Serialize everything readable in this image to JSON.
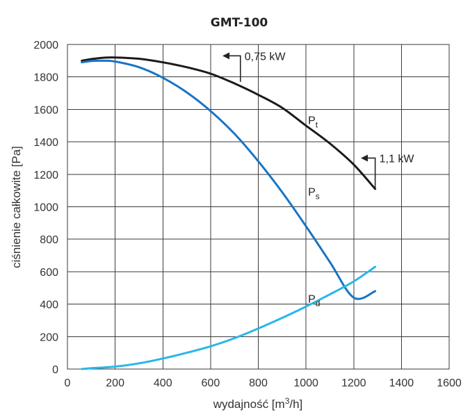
{
  "chart_data": {
    "type": "line",
    "title": "GMT-100",
    "xlabel_base": "wydajność [m",
    "xlabel_sup": "3",
    "xlabel_end": "/h]",
    "ylabel": "ciśnienie całkowite [Pa]",
    "xlim": [
      0,
      1600
    ],
    "ylim": [
      0,
      2000
    ],
    "xticks": [
      0,
      200,
      400,
      600,
      800,
      1000,
      1200,
      1400,
      1600
    ],
    "yticks": [
      0,
      200,
      400,
      600,
      800,
      1000,
      1200,
      1400,
      1600,
      1800,
      2000
    ],
    "grid": true,
    "series": [
      {
        "name": "Pt",
        "label_main": "P",
        "label_sub": "t",
        "color": "#1a1a1a",
        "x": [
          60,
          100,
          150,
          200,
          300,
          400,
          500,
          600,
          700,
          800,
          900,
          1000,
          1100,
          1200,
          1290
        ],
        "y": [
          1900,
          1910,
          1918,
          1920,
          1912,
          1890,
          1860,
          1820,
          1760,
          1690,
          1610,
          1500,
          1390,
          1260,
          1110
        ]
      },
      {
        "name": "Ps",
        "label_main": "P",
        "label_sub": "s",
        "color": "#1874c4",
        "x": [
          60,
          100,
          150,
          200,
          300,
          400,
          500,
          600,
          700,
          800,
          900,
          1000,
          1100,
          1200,
          1290
        ],
        "y": [
          1890,
          1898,
          1900,
          1895,
          1860,
          1795,
          1705,
          1590,
          1450,
          1280,
          1090,
          880,
          660,
          440,
          480
        ]
      },
      {
        "name": "Pd",
        "label_main": "P",
        "label_sub": "d",
        "color": "#29b6e8",
        "x": [
          60,
          100,
          200,
          300,
          400,
          500,
          600,
          700,
          800,
          900,
          1000,
          1100,
          1200,
          1290
        ],
        "y": [
          0,
          5,
          15,
          35,
          65,
          100,
          140,
          190,
          250,
          315,
          385,
          460,
          540,
          630
        ]
      }
    ],
    "annotations": [
      {
        "text": "0,75 kW",
        "at": [
          725,
          1770
        ],
        "arrow_from": [
          725,
          1930
        ],
        "arrow_to": [
          650,
          1930
        ]
      },
      {
        "text": "1,1 kW",
        "at": [
          1290,
          1110
        ],
        "arrow_from": [
          1290,
          1300
        ],
        "arrow_to": [
          1230,
          1300
        ]
      }
    ]
  }
}
